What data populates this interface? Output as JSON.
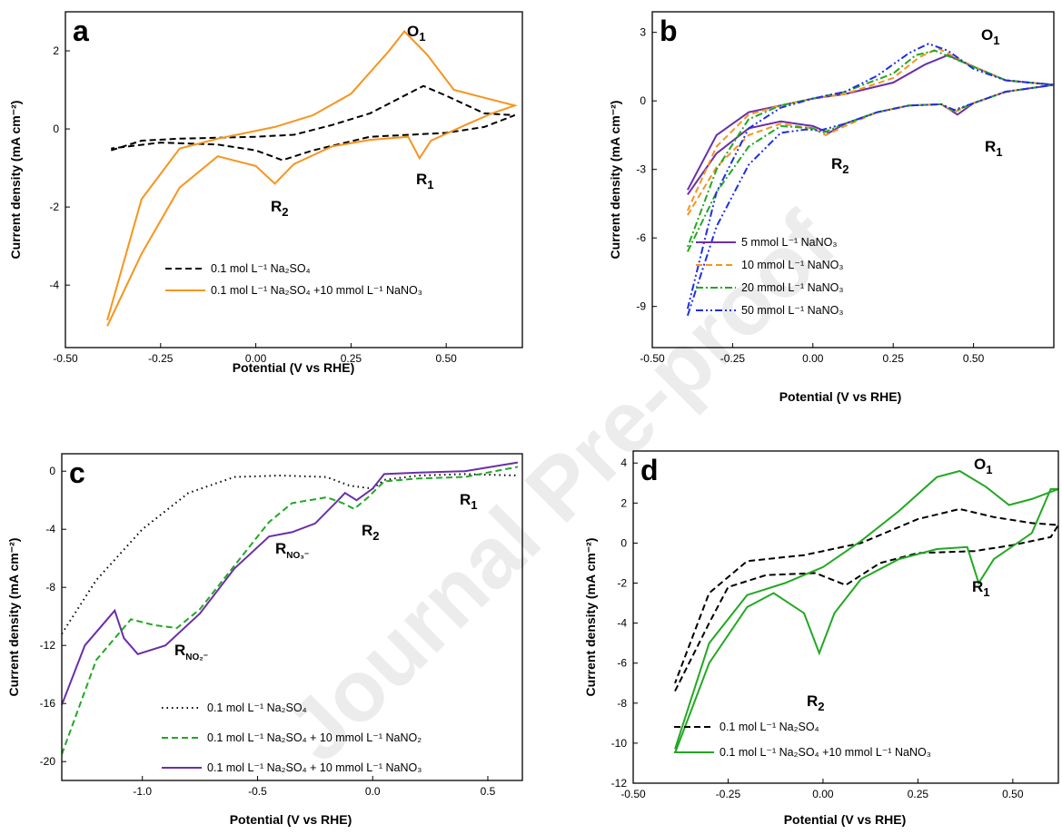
{
  "watermark": "Journal Pre-proof",
  "chart_data": [
    {
      "type": "line",
      "panel": "a",
      "xlabel": "Potential (V vs RHE)",
      "ylabel": "Current density (mA cm⁻²)",
      "xlim": [
        -0.5,
        0.7
      ],
      "ylim": [
        -5.6,
        3.0
      ],
      "xticks": [
        {
          "value": -0.5,
          "label": "-0.50"
        },
        {
          "value": -0.25,
          "label": "-0.25"
        },
        {
          "value": 0,
          "label": "0.00"
        },
        {
          "value": 0.25,
          "label": "0.25"
        },
        {
          "value": 0.5,
          "label": "0.50"
        }
      ],
      "yticks": [
        2,
        0,
        -2,
        -4
      ],
      "legend": "lower left",
      "annotations": [
        {
          "base": "O",
          "sub": "1"
        },
        {
          "base": "R",
          "sub": "1"
        },
        {
          "base": "R",
          "sub": "2"
        }
      ],
      "series": [
        {
          "name": "0.1 mol L⁻¹ Na₂SO₄",
          "color": "#000000",
          "dash": "dashed",
          "x": [
            -0.38,
            -0.3,
            -0.2,
            0,
            0.1,
            0.2,
            0.3,
            0.4,
            0.44,
            0.5,
            0.6,
            0.68,
            0.6,
            0.5,
            0.3,
            0.15,
            0.07,
            0,
            -0.1,
            -0.25,
            -0.38
          ],
          "values": [
            -0.55,
            -0.3,
            -0.25,
            -0.2,
            -0.15,
            0.1,
            0.4,
            0.9,
            1.1,
            0.85,
            0.4,
            0.35,
            0.05,
            -0.1,
            -0.2,
            -0.55,
            -0.8,
            -0.55,
            -0.4,
            -0.35,
            -0.5
          ]
        },
        {
          "name": "0.1 mol L⁻¹ Na₂SO₄ +10 mmol L⁻¹ NaNO₃",
          "color": "#f7941d",
          "dash": "solid",
          "x": [
            -0.39,
            -0.3,
            -0.2,
            -0.1,
            0,
            0.05,
            0.1,
            0.2,
            0.3,
            0.4,
            0.43,
            0.46,
            0.55,
            0.62,
            0.68,
            0.6,
            0.52,
            0.45,
            0.39,
            0.35,
            0.25,
            0.15,
            0.05,
            -0.1,
            -0.2,
            -0.3,
            -0.39
          ],
          "values": [
            -5.05,
            -3.2,
            -1.5,
            -0.7,
            -0.95,
            -1.4,
            -0.9,
            -0.45,
            -0.28,
            -0.2,
            -0.75,
            -0.3,
            0.1,
            0.4,
            0.6,
            0.8,
            1.0,
            1.9,
            2.5,
            2.0,
            0.9,
            0.35,
            0.05,
            -0.25,
            -0.5,
            -1.8,
            -4.9
          ]
        }
      ]
    },
    {
      "type": "line",
      "panel": "b",
      "xlabel": "Potential (V vs RHE)",
      "ylabel": "Current density (mA cm⁻²)",
      "xlim": [
        -0.5,
        0.75
      ],
      "ylim": [
        -10.8,
        3.9
      ],
      "xticks": [
        {
          "value": -0.5,
          "label": "-0.50"
        },
        {
          "value": -0.25,
          "label": "-0.25"
        },
        {
          "value": 0,
          "label": "0.00"
        },
        {
          "value": 0.25,
          "label": "0.25"
        },
        {
          "value": 0.5,
          "label": "0.50"
        }
      ],
      "yticks": [
        3,
        0,
        -3,
        -6,
        -9
      ],
      "legend": "lower right",
      "annotations": [
        {
          "base": "O",
          "sub": "1"
        },
        {
          "base": "R",
          "sub": "1"
        },
        {
          "base": "R",
          "sub": "2"
        }
      ],
      "series": [
        {
          "name": "5 mmol L⁻¹ NaNO₃",
          "color": "#6a2fa8",
          "dash": "solid",
          "x": [
            -0.39,
            -0.3,
            -0.2,
            -0.1,
            0,
            0.05,
            0.1,
            0.2,
            0.3,
            0.4,
            0.45,
            0.5,
            0.6,
            0.75,
            0.6,
            0.5,
            0.42,
            0.35,
            0.25,
            0.1,
            0,
            -0.1,
            -0.2,
            -0.3,
            -0.39
          ],
          "values": [
            -4.1,
            -2.3,
            -1.2,
            -0.9,
            -1.1,
            -1.4,
            -1.0,
            -0.5,
            -0.2,
            -0.15,
            -0.6,
            -0.1,
            0.4,
            0.7,
            0.9,
            1.5,
            2.0,
            1.6,
            0.8,
            0.3,
            0.1,
            -0.2,
            -0.5,
            -1.5,
            -3.9
          ]
        },
        {
          "name": "10 mmol L⁻¹ NaNO₃",
          "color": "#f7941d",
          "dash": "dashed",
          "x": [
            -0.39,
            -0.3,
            -0.2,
            -0.1,
            0,
            0.04,
            0.1,
            0.2,
            0.3,
            0.4,
            0.44,
            0.5,
            0.6,
            0.75,
            0.6,
            0.5,
            0.39,
            0.33,
            0.25,
            0.1,
            0,
            -0.1,
            -0.2,
            -0.3,
            -0.39
          ],
          "values": [
            -5.0,
            -2.9,
            -1.5,
            -1.0,
            -1.2,
            -1.5,
            -1.1,
            -0.5,
            -0.2,
            -0.15,
            -0.5,
            -0.1,
            0.4,
            0.7,
            0.9,
            1.5,
            2.3,
            1.9,
            1.0,
            0.3,
            0.1,
            -0.2,
            -0.6,
            -2.0,
            -4.8
          ]
        },
        {
          "name": "20 mmol L⁻¹ NaNO₃",
          "color": "#22a822",
          "dash": "dashdot",
          "x": [
            -0.39,
            -0.3,
            -0.2,
            -0.1,
            0,
            0.03,
            0.1,
            0.2,
            0.3,
            0.4,
            0.44,
            0.5,
            0.6,
            0.75,
            0.6,
            0.5,
            0.38,
            0.32,
            0.25,
            0.1,
            0,
            -0.1,
            -0.2,
            -0.3,
            -0.39
          ],
          "values": [
            -6.6,
            -4.0,
            -2.0,
            -1.1,
            -1.2,
            -1.4,
            -1.0,
            -0.5,
            -0.2,
            -0.15,
            -0.45,
            -0.1,
            0.4,
            0.7,
            0.9,
            1.5,
            2.2,
            2.0,
            1.2,
            0.4,
            0.1,
            -0.2,
            -0.8,
            -3.0,
            -6.4
          ]
        },
        {
          "name": "50 mmol L⁻¹ NaNO₃",
          "color": "#1f2fe0",
          "dash": "dashdotdot",
          "x": [
            -0.39,
            -0.3,
            -0.2,
            -0.1,
            -0.02,
            0.02,
            0.1,
            0.2,
            0.3,
            0.4,
            0.44,
            0.5,
            0.6,
            0.75,
            0.6,
            0.5,
            0.42,
            0.36,
            0.3,
            0.2,
            0.1,
            0,
            -0.1,
            -0.2,
            -0.3,
            -0.39
          ],
          "values": [
            -9.4,
            -5.5,
            -2.8,
            -1.4,
            -1.25,
            -1.3,
            -1.0,
            -0.5,
            -0.2,
            -0.15,
            -0.4,
            -0.1,
            0.4,
            0.7,
            0.9,
            1.4,
            2.2,
            2.5,
            2.1,
            1.1,
            0.4,
            0.1,
            -0.3,
            -1.2,
            -4.0,
            -9.1
          ]
        }
      ]
    },
    {
      "type": "line",
      "panel": "c",
      "xlabel": "Potential (V vs RHE)",
      "ylabel": "Current density (mA cm⁻²)",
      "xlim": [
        -1.35,
        0.65
      ],
      "ylim": [
        -21.3,
        1.2
      ],
      "xticks": [
        {
          "value": -1,
          "label": "-1.0"
        },
        {
          "value": -0.5,
          "label": "-0.5"
        },
        {
          "value": 0,
          "label": "0.0"
        },
        {
          "value": 0.5,
          "label": "0.5"
        }
      ],
      "yticks": [
        0,
        -4,
        -8,
        -12,
        -16,
        -20
      ],
      "legend": "lower left",
      "annotations": [
        {
          "base": "R",
          "sub": "NO₃⁻"
        },
        {
          "base": "R",
          "sub": "NO₂⁻"
        },
        {
          "base": "R",
          "sub": "2"
        },
        {
          "base": "R",
          "sub": "1"
        }
      ],
      "series": [
        {
          "name": "0.1 mol L⁻¹ Na₂SO₄",
          "color": "#000000",
          "dash": "dotted",
          "x": [
            -1.35,
            -1.2,
            -1.0,
            -0.8,
            -0.6,
            -0.4,
            -0.2,
            -0.1,
            0,
            0.05,
            0.2,
            0.4,
            0.63
          ],
          "values": [
            -11.2,
            -7.5,
            -4.0,
            -1.5,
            -0.4,
            -0.3,
            -0.4,
            -1.0,
            -1.2,
            -0.6,
            -0.3,
            -0.2,
            -0.3
          ]
        },
        {
          "name": "0.1 mol L⁻¹ Na₂SO₄ + 10 mmol L⁻¹ NaNO₂",
          "color": "#22a822",
          "dash": "dashed",
          "x": [
            -1.35,
            -1.2,
            -1.05,
            -0.95,
            -0.85,
            -0.75,
            -0.6,
            -0.45,
            -0.35,
            -0.2,
            -0.13,
            -0.08,
            -0.02,
            0.05,
            0.2,
            0.4,
            0.63
          ],
          "values": [
            -19.5,
            -13.0,
            -10.2,
            -10.6,
            -10.8,
            -9.5,
            -6.5,
            -3.5,
            -2.2,
            -1.8,
            -2.2,
            -2.6,
            -1.8,
            -0.7,
            -0.5,
            -0.4,
            0.3
          ]
        },
        {
          "name": "0.1 mol L⁻¹ Na₂SO₄ + 10 mmol L⁻¹ NaNO₃",
          "color": "#6a2fa8",
          "dash": "solid",
          "x": [
            -1.35,
            -1.25,
            -1.12,
            -1.08,
            -1.02,
            -0.9,
            -0.75,
            -0.6,
            -0.45,
            -0.35,
            -0.25,
            -0.15,
            -0.12,
            -0.07,
            0,
            0.05,
            0.2,
            0.4,
            0.63
          ],
          "values": [
            -16.1,
            -12.0,
            -9.6,
            -11.5,
            -12.6,
            -12.0,
            -9.8,
            -6.7,
            -4.5,
            -4.2,
            -3.6,
            -2.0,
            -1.5,
            -2.0,
            -1.2,
            -0.2,
            -0.1,
            0.0,
            0.6
          ]
        }
      ]
    },
    {
      "type": "line",
      "panel": "d",
      "xlabel": "Potential (V vs RHE)",
      "ylabel": "Current density (mA cm⁻²)",
      "xlim": [
        -0.5,
        0.62
      ],
      "ylim": [
        -12,
        4.6
      ],
      "xticks": [
        {
          "value": -0.5,
          "label": "-0.50"
        },
        {
          "value": -0.25,
          "label": "-0.25"
        },
        {
          "value": 0,
          "label": "0.00"
        },
        {
          "value": 0.25,
          "label": "0.25"
        },
        {
          "value": 0.5,
          "label": "0.50"
        }
      ],
      "yticks": [
        4,
        2,
        0,
        -2,
        -4,
        -6,
        -8,
        -10,
        -12
      ],
      "legend": "lower left",
      "annotations": [
        {
          "base": "O",
          "sub": "1"
        },
        {
          "base": "R",
          "sub": "1"
        },
        {
          "base": "R",
          "sub": "2"
        }
      ],
      "series": [
        {
          "name": "0.1 mol L⁻¹ Na₂SO₄",
          "color": "#000000",
          "dash": "dashed",
          "x": [
            -0.39,
            -0.3,
            -0.25,
            -0.15,
            -0.02,
            0.06,
            0.15,
            0.25,
            0.4,
            0.5,
            0.6,
            0.62,
            0.55,
            0.45,
            0.36,
            0.25,
            0.1,
            -0.05,
            -0.2,
            -0.3,
            -0.39
          ],
          "values": [
            -7.4,
            -4.0,
            -2.2,
            -1.6,
            -1.5,
            -2.1,
            -1.0,
            -0.5,
            -0.4,
            -0.1,
            0.3,
            0.9,
            1.0,
            1.3,
            1.7,
            1.2,
            0.0,
            -0.6,
            -0.9,
            -2.5,
            -7.0
          ]
        },
        {
          "name": "0.1 mol L⁻¹ Na₂SO₄ +10 mmol L⁻¹ NaNO₃",
          "color": "#22a822",
          "dash": "solid",
          "x": [
            -0.39,
            -0.3,
            -0.2,
            -0.13,
            -0.05,
            -0.01,
            0.03,
            0.1,
            0.2,
            0.3,
            0.38,
            0.41,
            0.45,
            0.55,
            0.6,
            0.62,
            0.55,
            0.49,
            0.43,
            0.36,
            0.3,
            0.2,
            0.1,
            0,
            -0.1,
            -0.2,
            -0.3,
            -0.39
          ],
          "values": [
            -10.5,
            -6.0,
            -3.2,
            -2.5,
            -3.5,
            -5.5,
            -3.5,
            -1.8,
            -0.8,
            -0.3,
            -0.2,
            -2.0,
            -0.8,
            0.5,
            2.7,
            2.7,
            2.2,
            1.9,
            2.8,
            3.6,
            3.3,
            1.6,
            0.1,
            -1.2,
            -2.0,
            -2.6,
            -5.0,
            -10.3
          ]
        }
      ]
    }
  ]
}
